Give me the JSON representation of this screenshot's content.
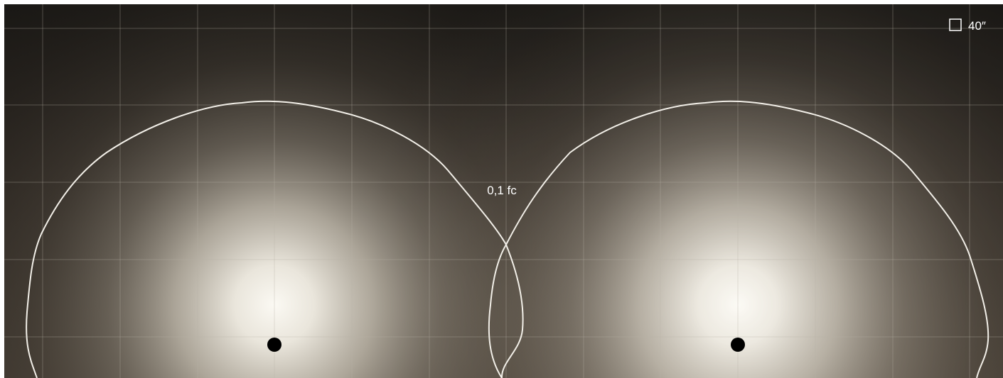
{
  "scale": {
    "icon": "grid-square-icon",
    "label": "40″"
  },
  "contour": {
    "label": "0,1 fc"
  },
  "luminaires": [
    {
      "id": "left",
      "icon": "luminaire-dot-icon"
    },
    {
      "id": "right",
      "icon": "luminaire-dot-icon"
    }
  ],
  "colors": {
    "background": "#1a1815",
    "glow_center": "#fbf9f3",
    "contour_line": "#f2efe8",
    "grid_line": "#b7b2a6",
    "luminaire": "#000000",
    "scale_text": "#ffffff"
  }
}
